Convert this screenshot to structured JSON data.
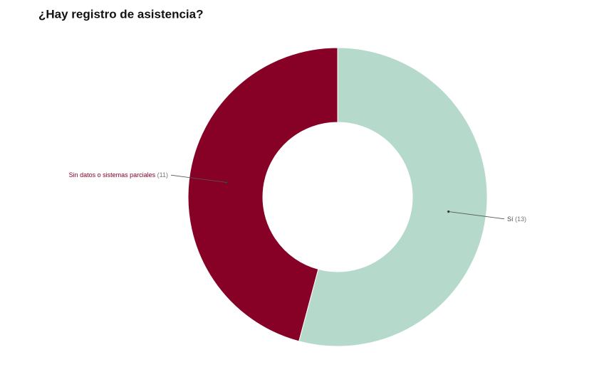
{
  "chart_data": {
    "type": "pie",
    "title": "¿Hay registro de asistencia?",
    "categories": [
      "Sí",
      "Sin datos o sistemas parciales"
    ],
    "values": [
      13,
      11
    ],
    "value_labels": [
      "(13)",
      "(11)"
    ],
    "colors": [
      "#b5d9cb",
      "#870026"
    ]
  }
}
